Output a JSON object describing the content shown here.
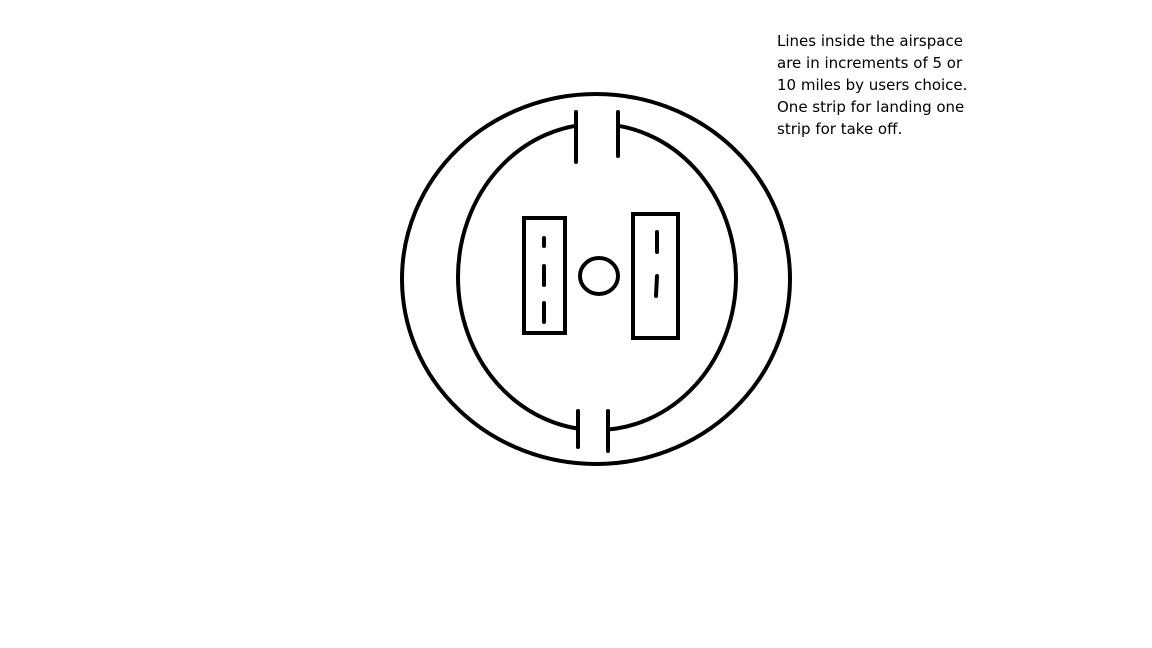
{
  "annotation": {
    "lines": [
      "Lines inside the airspace",
      "are in increments of 5 or",
      "10 miles by users choice.",
      "One strip for landing one",
      "strip for take off."
    ]
  },
  "colors": {
    "stroke": "#000000",
    "background": "#ffffff"
  }
}
